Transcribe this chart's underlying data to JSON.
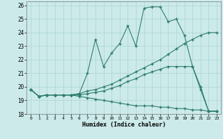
{
  "xlabel": "Humidex (Indice chaleur)",
  "bg_color": "#cceaea",
  "line_color": "#2e7d6e",
  "grid_color": "#aad4d4",
  "xlim": [
    -0.5,
    23.5
  ],
  "ylim": [
    18,
    26.3
  ],
  "xticks": [
    0,
    1,
    2,
    3,
    4,
    5,
    6,
    7,
    8,
    9,
    10,
    11,
    12,
    13,
    14,
    15,
    16,
    17,
    18,
    19,
    20,
    21,
    22,
    23
  ],
  "yticks": [
    18,
    19,
    20,
    21,
    22,
    23,
    24,
    25,
    26
  ],
  "series": [
    [
      19.8,
      19.3,
      19.4,
      19.4,
      19.4,
      19.4,
      19.5,
      21.0,
      23.5,
      21.5,
      22.5,
      23.2,
      24.5,
      23.0,
      25.8,
      25.9,
      25.9,
      24.8,
      25.0,
      23.8,
      21.5,
      19.8,
      18.2,
      18.2
    ],
    [
      19.8,
      19.3,
      19.4,
      19.4,
      19.4,
      19.4,
      19.4,
      19.5,
      19.6,
      19.7,
      19.9,
      20.1,
      20.4,
      20.6,
      20.9,
      21.1,
      21.3,
      21.5,
      21.5,
      21.5,
      21.5,
      20.0,
      18.2,
      18.2
    ],
    [
      19.8,
      19.3,
      19.4,
      19.4,
      19.4,
      19.4,
      19.5,
      19.7,
      19.8,
      20.0,
      20.2,
      20.5,
      20.8,
      21.1,
      21.4,
      21.7,
      22.0,
      22.4,
      22.8,
      23.2,
      23.5,
      23.8,
      24.0,
      24.0
    ],
    [
      19.8,
      19.3,
      19.4,
      19.4,
      19.4,
      19.4,
      19.3,
      19.2,
      19.1,
      19.0,
      18.9,
      18.8,
      18.7,
      18.6,
      18.6,
      18.6,
      18.5,
      18.5,
      18.4,
      18.4,
      18.3,
      18.3,
      18.2,
      18.2
    ]
  ]
}
